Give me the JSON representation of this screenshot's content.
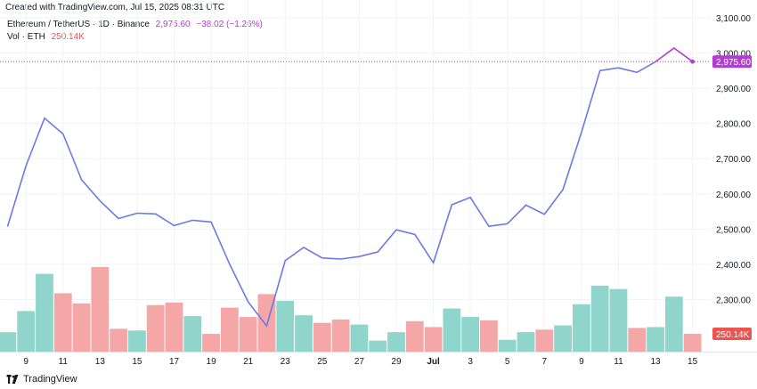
{
  "header": {
    "created": "Created with TradingView.com, Jul 15, 2025 08:31 UTC"
  },
  "legend": {
    "symbol": "Ethereum / TetherUS · 1D · Binance",
    "price": "2,975.60",
    "change": "−38.02 (−1.26%)",
    "vol_label": "Vol · ETH",
    "vol_value": "250.14K"
  },
  "footer": {
    "brand": "TradingView",
    "logo_icon": "tradingview-logo-icon"
  },
  "colors": {
    "line": "#6c79e4",
    "line_recent": "#b63ad6",
    "vol_up": "#8fd5cc",
    "vol_down": "#f5a6a6",
    "last_price_badge": "#b63ad6",
    "vol_badge": "#ef5350"
  },
  "chart_data": {
    "type": "line",
    "ylim": [
      2200,
      3100
    ],
    "yticks": [
      "3,100.00",
      "3,000.00",
      "2,900.00",
      "2,800.00",
      "2,700.00",
      "2,600.00",
      "2,500.00",
      "2,400.00",
      "2,300.00"
    ],
    "ytick_values": [
      3100,
      3000,
      2900,
      2800,
      2700,
      2600,
      2500,
      2400,
      2300
    ],
    "last_price_label": "2,975.60",
    "last_price": 2975.6,
    "last_volume_label": "250.14K",
    "xtick_labels": [
      "9",
      "11",
      "13",
      "15",
      "17",
      "19",
      "21",
      "23",
      "25",
      "27",
      "29",
      "Jul",
      "3",
      "5",
      "7",
      "9",
      "11",
      "13",
      "15"
    ],
    "xtick_index": [
      1,
      3,
      5,
      7,
      9,
      11,
      13,
      15,
      17,
      19,
      21,
      23,
      25,
      27,
      29,
      31,
      33,
      35,
      37
    ],
    "close": [
      2507,
      2680,
      2815,
      2770,
      2640,
      2580,
      2530,
      2545,
      2543,
      2510,
      2525,
      2520,
      2400,
      2293,
      2225,
      2410,
      2448,
      2418,
      2415,
      2422,
      2435,
      2498,
      2485,
      2404,
      2569,
      2590,
      2508,
      2515,
      2568,
      2542,
      2612,
      2775,
      2950,
      2958,
      2945,
      2975,
      3014,
      2975.6
    ],
    "volume_rel": [
      0.23,
      0.48,
      0.92,
      0.69,
      0.57,
      1.0,
      0.27,
      0.25,
      0.55,
      0.58,
      0.42,
      0.21,
      0.52,
      0.41,
      0.68,
      0.6,
      0.43,
      0.34,
      0.38,
      0.32,
      0.13,
      0.23,
      0.36,
      0.29,
      0.51,
      0.41,
      0.37,
      0.14,
      0.23,
      0.26,
      0.31,
      0.56,
      0.78,
      0.74,
      0.28,
      0.29,
      0.65,
      0.21
    ],
    "volume_up": [
      true,
      true,
      true,
      false,
      false,
      false,
      false,
      true,
      false,
      false,
      true,
      false,
      false,
      false,
      false,
      true,
      true,
      false,
      false,
      true,
      true,
      true,
      false,
      false,
      true,
      true,
      false,
      true,
      true,
      false,
      true,
      true,
      true,
      true,
      false,
      true,
      true,
      false
    ]
  }
}
